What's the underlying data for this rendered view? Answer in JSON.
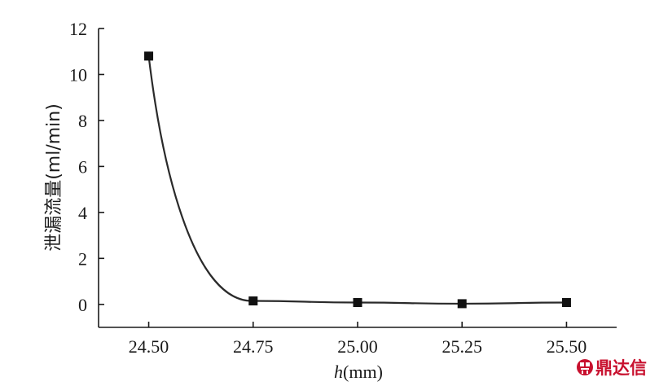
{
  "chart_data": {
    "type": "line",
    "x": [
      24.5,
      24.75,
      25.0,
      25.25,
      25.5
    ],
    "x_tick_labels": [
      "24.50",
      "24.75",
      "25.00",
      "25.25",
      "25.50"
    ],
    "y_ticks": [
      0,
      2,
      4,
      6,
      8,
      10,
      12
    ],
    "series": [
      {
        "values": [
          10.8,
          0.15,
          0.08,
          0.03,
          0.08
        ],
        "marker": "square",
        "smoothed": true
      }
    ],
    "xlabel_italic": "h",
    "xlabel_unit": "(mm)",
    "ylabel": "泄漏流量(ml/min)",
    "xlim": [
      24.38,
      25.62
    ],
    "ylim": [
      -1,
      12
    ],
    "grid": false,
    "colors": {
      "line": "#2a2a2a",
      "marker": "#111111",
      "axis": "#1a1a1a"
    }
  },
  "watermark": {
    "text": "鼎达信",
    "color": "#c8102e",
    "icon": "dingdaxin-logo-icon"
  }
}
